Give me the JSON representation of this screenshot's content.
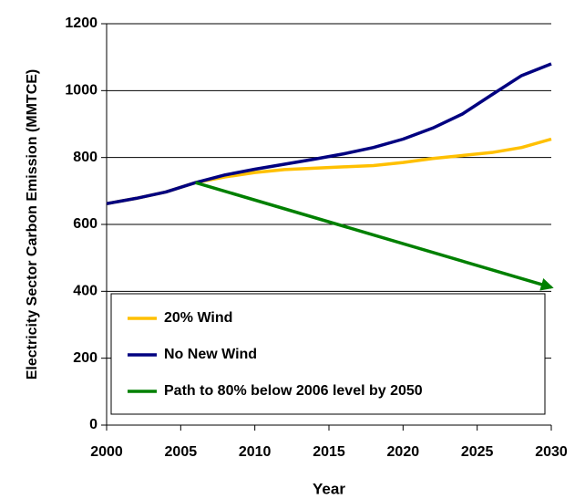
{
  "chart_data": {
    "type": "line",
    "xlabel": "Year",
    "ylabel": "Electricity Sector Carbon Emission (MMTCE)",
    "xlim": [
      2000,
      2030
    ],
    "xticks": [
      2000,
      2005,
      2010,
      2015,
      2020,
      2025,
      2030
    ],
    "ylim": [
      0,
      1200
    ],
    "yticks": [
      0,
      200,
      400,
      600,
      800,
      1000,
      1200
    ],
    "grid": true,
    "legend": "lower left",
    "series": [
      {
        "name": "20% Wind",
        "color": "#ffc000",
        "x": [
          2000,
          2002,
          2004,
          2006,
          2008,
          2010,
          2012,
          2014,
          2016,
          2018,
          2020,
          2022,
          2024,
          2026,
          2028,
          2030
        ],
        "values": [
          662,
          678,
          697,
          725,
          742,
          755,
          764,
          768,
          772,
          776,
          785,
          797,
          806,
          815,
          830,
          855
        ]
      },
      {
        "name": "No New Wind",
        "color": "#000080",
        "x": [
          2000,
          2002,
          2004,
          2006,
          2008,
          2010,
          2012,
          2014,
          2016,
          2018,
          2020,
          2022,
          2024,
          2026,
          2028,
          2030
        ],
        "values": [
          662,
          678,
          697,
          725,
          748,
          765,
          780,
          795,
          811,
          830,
          855,
          888,
          930,
          988,
          1045,
          1080
        ]
      },
      {
        "name": "Path to 80% below 2006 level by 2050",
        "color": "#008000",
        "x": [
          2006,
          2030
        ],
        "values": [
          725,
          412
        ]
      }
    ]
  }
}
